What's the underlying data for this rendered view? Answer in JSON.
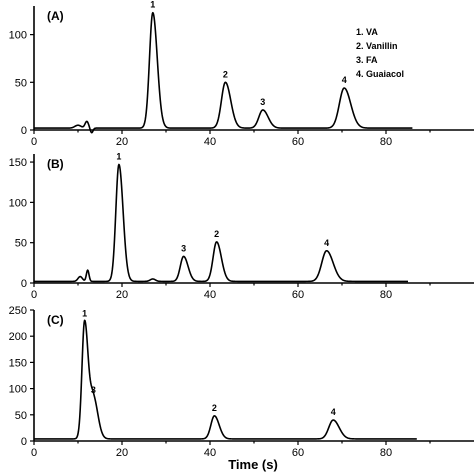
{
  "chart_data": [
    {
      "type": "line",
      "panel_label": "(A)",
      "xlim": [
        0,
        100
      ],
      "x_ticks": [
        0,
        20,
        40,
        60,
        80
      ],
      "ylim": [
        0,
        130
      ],
      "y_ticks": [
        0,
        50,
        100
      ],
      "legend": [
        "1. VA",
        "2. Vanillin",
        "3. FA",
        "4. Guaiacol"
      ],
      "trace_end": 86,
      "baseline": 2,
      "artifacts": [
        {
          "x": 10,
          "amp": 3,
          "w": 0.7
        },
        {
          "x": 12,
          "amp": 7,
          "w": 0.4
        },
        {
          "x": 13.1,
          "amp": -5,
          "w": 0.3
        }
      ],
      "peaks": [
        {
          "label": "1",
          "x": 27,
          "y": 123,
          "w": 0.75
        },
        {
          "label": "2",
          "x": 43.5,
          "y": 50,
          "w": 0.9
        },
        {
          "label": "3",
          "x": 52,
          "y": 21,
          "w": 0.9
        },
        {
          "label": "4",
          "x": 70.5,
          "y": 44,
          "w": 1.1
        }
      ]
    },
    {
      "type": "line",
      "panel_label": "(B)",
      "xlim": [
        0,
        100
      ],
      "x_ticks": [
        0,
        20,
        40,
        60,
        80
      ],
      "ylim": [
        0,
        160
      ],
      "y_ticks": [
        0,
        50,
        100,
        150
      ],
      "legend": [],
      "trace_end": 85,
      "baseline": 2,
      "artifacts": [
        {
          "x": 10.5,
          "amp": 6,
          "w": 0.5
        },
        {
          "x": 12.2,
          "amp": 14,
          "w": 0.3
        },
        {
          "x": 27,
          "amp": 3,
          "w": 0.6
        }
      ],
      "peaks": [
        {
          "label": "1",
          "x": 19.3,
          "y": 147,
          "w": 0.7
        },
        {
          "label": "3",
          "x": 34,
          "y": 33,
          "w": 0.75
        },
        {
          "label": "2",
          "x": 41.5,
          "y": 51,
          "w": 0.8
        },
        {
          "label": "4",
          "x": 66.5,
          "y": 40,
          "w": 1.1
        }
      ]
    },
    {
      "type": "line",
      "panel_label": "(C)",
      "xlim": [
        0,
        100
      ],
      "x_ticks": [
        0,
        20,
        40,
        60,
        80
      ],
      "ylim": [
        0,
        250
      ],
      "y_ticks": [
        0,
        50,
        100,
        150,
        200,
        250
      ],
      "legend": [],
      "trace_end": 87,
      "baseline": 4,
      "artifacts": [],
      "peaks": [
        {
          "label": "1",
          "x": 11.5,
          "y": 228,
          "w": 0.6
        },
        {
          "label": "3",
          "x": 13.5,
          "y": 82,
          "w": 0.75
        },
        {
          "label": "2",
          "x": 41,
          "y": 48,
          "w": 0.8
        },
        {
          "label": "4",
          "x": 68,
          "y": 40,
          "w": 1.0
        }
      ]
    }
  ],
  "xlabel": "Time (s)"
}
